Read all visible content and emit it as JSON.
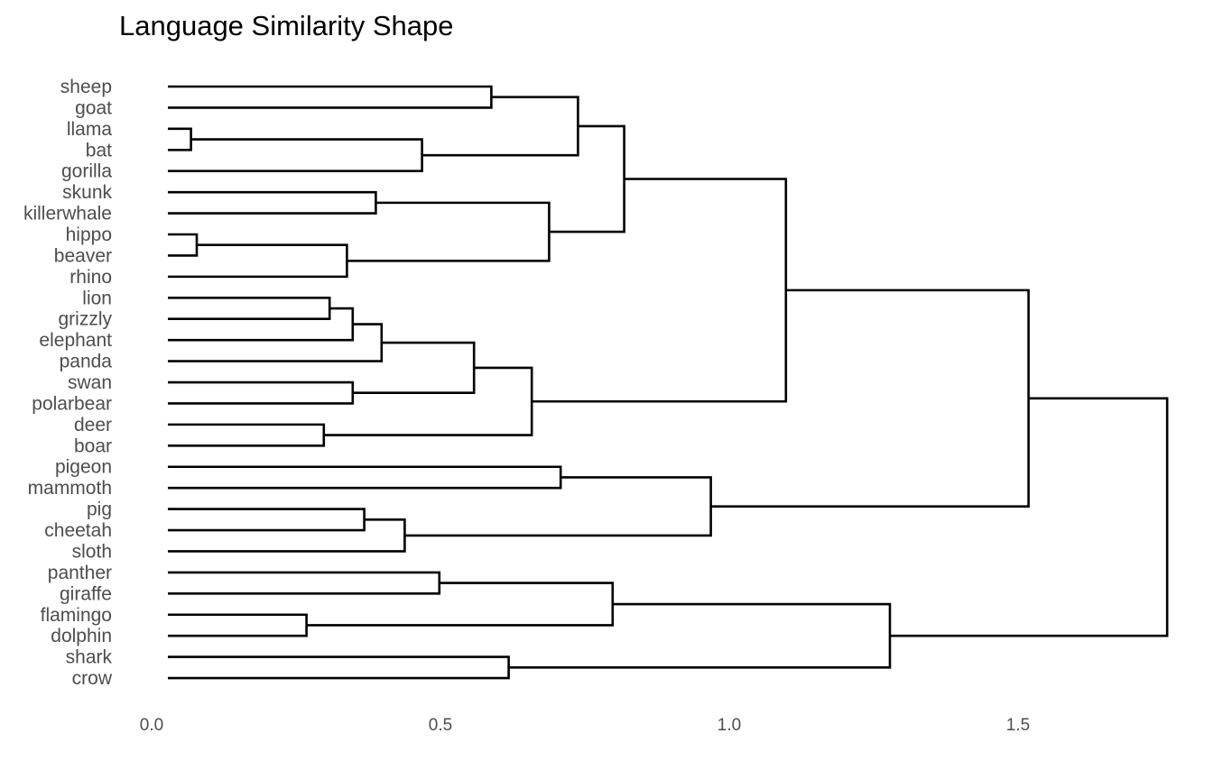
{
  "chart_data": {
    "type": "dendrogram",
    "title": "Language Similarity Shape",
    "orientation": "horizontal",
    "xlabel": "",
    "ylabel": "",
    "xlim": [
      0,
      1.75
    ],
    "x_ticks": [
      0.0,
      0.5,
      1.0,
      1.5
    ],
    "x_tick_labels": [
      "0.0",
      "0.5",
      "1.0",
      "1.5"
    ],
    "grid": false,
    "legend": "none",
    "line_color": "#000000",
    "leaves": [
      "sheep",
      "goat",
      "llama",
      "bat",
      "gorilla",
      "skunk",
      "killerwhale",
      "hippo",
      "beaver",
      "rhino",
      "lion",
      "grizzly",
      "elephant",
      "panda",
      "swan",
      "polarbear",
      "deer",
      "boar",
      "pigeon",
      "mammoth",
      "pig",
      "cheetah",
      "sloth",
      "panther",
      "giraffe",
      "flamingo",
      "dolphin",
      "shark",
      "crow"
    ],
    "merges": [
      {
        "a": "llama",
        "b": "bat",
        "height": 0.04
      },
      {
        "a": "hippo",
        "b": "beaver",
        "height": 0.05
      },
      {
        "a": "flamingo",
        "b": "dolphin",
        "height": 0.24
      },
      {
        "a": "deer",
        "b": "boar",
        "height": 0.27
      },
      {
        "a": "lion",
        "b": "grizzly",
        "height": 0.28
      },
      {
        "a": "beaver",
        "b": "rhino",
        "height": 0.31
      },
      {
        "a": "grizzly",
        "b": "elephant",
        "height": 0.32
      },
      {
        "a": "swan",
        "b": "polarbear",
        "height": 0.32
      },
      {
        "a": "pig",
        "b": "cheetah",
        "height": 0.34
      },
      {
        "a": "skunk",
        "b": "killerwhale",
        "height": 0.36
      },
      {
        "a": "elephant",
        "b": "panda",
        "height": 0.37
      },
      {
        "a": "cheetah",
        "b": "sloth",
        "height": 0.41
      },
      {
        "a": "bat",
        "b": "gorilla",
        "height": 0.44
      },
      {
        "a": "panther",
        "b": "giraffe",
        "height": 0.47
      },
      {
        "a": "panda",
        "b": "polarbear",
        "height": 0.53
      },
      {
        "a": "sheep",
        "b": "goat",
        "height": 0.56
      },
      {
        "a": "shark",
        "b": "crow",
        "height": 0.59
      },
      {
        "a": "polarbear",
        "b": "boar",
        "height": 0.63
      },
      {
        "a": "killerwhale",
        "b": "rhino",
        "height": 0.66
      },
      {
        "a": "pigeon",
        "b": "mammoth",
        "height": 0.68
      },
      {
        "a": "goat",
        "b": "gorilla",
        "height": 0.71
      },
      {
        "a": "giraffe",
        "b": "dolphin",
        "height": 0.77
      },
      {
        "a": "gorilla",
        "b": "rhino",
        "height": 0.79
      },
      {
        "a": "mammoth",
        "b": "sloth",
        "height": 0.94
      },
      {
        "a": "rhino",
        "b": "boar",
        "height": 1.07
      },
      {
        "a": "dolphin",
        "b": "crow",
        "height": 1.25
      },
      {
        "a": "boar",
        "b": "sloth",
        "height": 1.49
      },
      {
        "a": "sloth",
        "b": "crow",
        "height": 1.73
      }
    ]
  }
}
